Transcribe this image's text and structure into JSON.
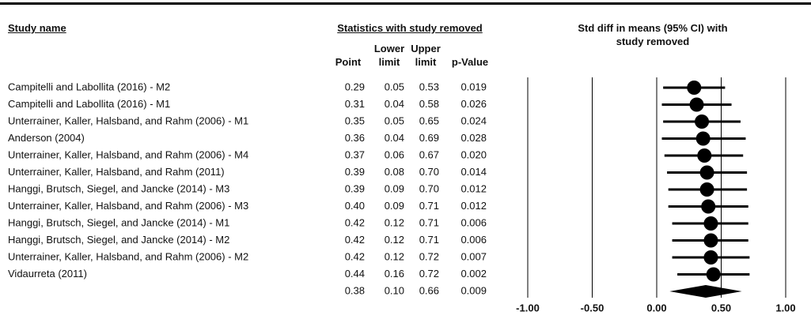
{
  "chart_data": {
    "type": "forest",
    "study_header": "Study name",
    "stats_header": "Statistics with study removed",
    "plot_title": "Std diff in means (95% CI) with study removed",
    "categories": [
      "Campitelli and Labollita (2016) - M2",
      "Campitelli and Labollita (2016) - M1",
      "Unterrainer, Kaller, Halsband, and Rahm (2006) - M1",
      "Anderson (2004)",
      "Unterrainer, Kaller, Halsband, and Rahm (2006) - M4",
      "Unterrainer, Kaller, Halsband, and Rahm (2011)",
      "Hanggi, Brutsch, Siegel, and Jancke (2014) - M3",
      "Unterrainer, Kaller, Halsband, and Rahm (2006) - M3",
      "Hanggi, Brutsch, Siegel, and Jancke (2014) - M1",
      "Hanggi, Brutsch, Siegel, and Jancke (2014) - M2",
      "Unterrainer, Kaller, Halsband, and Rahm (2006) - M2",
      "Vidaurreta (2011)",
      null
    ],
    "columns": [
      {
        "name": "Point",
        "values": [
          0.29,
          0.31,
          0.35,
          0.36,
          0.37,
          0.39,
          0.39,
          0.4,
          0.42,
          0.42,
          0.42,
          0.44,
          0.38
        ],
        "value_labels": [
          "0.29",
          "0.31",
          "0.35",
          "0.36",
          "0.37",
          "0.39",
          "0.39",
          "0.40",
          "0.42",
          "0.42",
          "0.42",
          "0.44",
          "0.38"
        ]
      },
      {
        "name": "Lower limit",
        "values": [
          0.05,
          0.04,
          0.05,
          0.04,
          0.06,
          0.08,
          0.09,
          0.09,
          0.12,
          0.12,
          0.12,
          0.16,
          0.1
        ],
        "value_labels": [
          "0.05",
          "0.04",
          "0.05",
          "0.04",
          "0.06",
          "0.08",
          "0.09",
          "0.09",
          "0.12",
          "0.12",
          "0.12",
          "0.16",
          "0.10"
        ]
      },
      {
        "name": "Upper limit",
        "values": [
          0.53,
          0.58,
          0.65,
          0.69,
          0.67,
          0.7,
          0.7,
          0.71,
          0.71,
          0.71,
          0.72,
          0.72,
          0.66
        ],
        "value_labels": [
          "0.53",
          "0.58",
          "0.65",
          "0.69",
          "0.67",
          "0.70",
          "0.70",
          "0.71",
          "0.71",
          "0.71",
          "0.72",
          "0.72",
          "0.66"
        ]
      },
      {
        "name": "p-Value",
        "values": [
          0.019,
          0.026,
          0.024,
          0.028,
          0.02,
          0.014,
          0.012,
          0.012,
          0.006,
          0.006,
          0.007,
          0.002,
          0.009
        ],
        "value_labels": [
          "0.019",
          "0.026",
          "0.024",
          "0.028",
          "0.020",
          "0.014",
          "0.012",
          "0.012",
          "0.006",
          "0.006",
          "0.007",
          "0.002",
          "0.009"
        ]
      }
    ],
    "xlim": [
      -1,
      1
    ],
    "xticks": [
      {
        "value": -1,
        "label": "-1.00"
      },
      {
        "value": -0.5,
        "label": "-0.50"
      },
      {
        "value": 0,
        "label": "0.00"
      },
      {
        "value": 0.5,
        "label": "0.50"
      },
      {
        "value": 1,
        "label": "1.00"
      }
    ],
    "color": "#000000"
  }
}
